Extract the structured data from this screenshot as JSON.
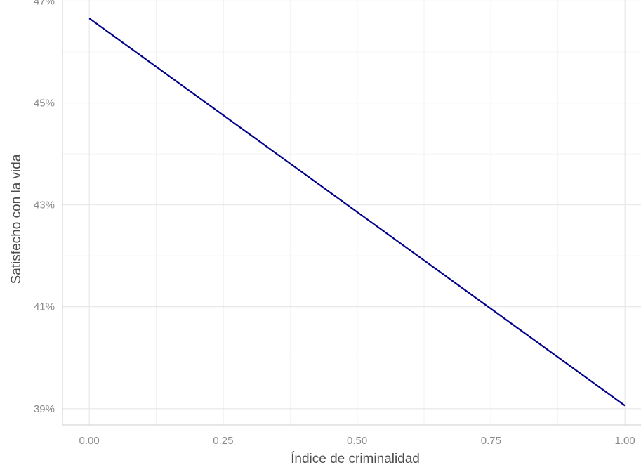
{
  "chart_data": {
    "type": "line",
    "title": "",
    "xlabel": "Índice de criminalidad",
    "ylabel": "Satisfecho con la vida",
    "xlim": [
      -0.05,
      1.03
    ],
    "ylim": [
      0.3868,
      0.4702
    ],
    "x_ticks": [
      0.0,
      0.25,
      0.5,
      0.75,
      1.0
    ],
    "x_tick_labels": [
      "0.00",
      "0.25",
      "0.50",
      "0.75",
      "1.00"
    ],
    "y_ticks": [
      0.39,
      0.41,
      0.43,
      0.45,
      0.47
    ],
    "y_tick_labels": [
      "39%",
      "41%",
      "43%",
      "45%",
      "47%"
    ],
    "grid": true,
    "legend": "none",
    "series": [
      {
        "color": "#00008b",
        "x": [
          0.0,
          1.0
        ],
        "y": [
          0.4666,
          0.3906
        ]
      }
    ]
  }
}
